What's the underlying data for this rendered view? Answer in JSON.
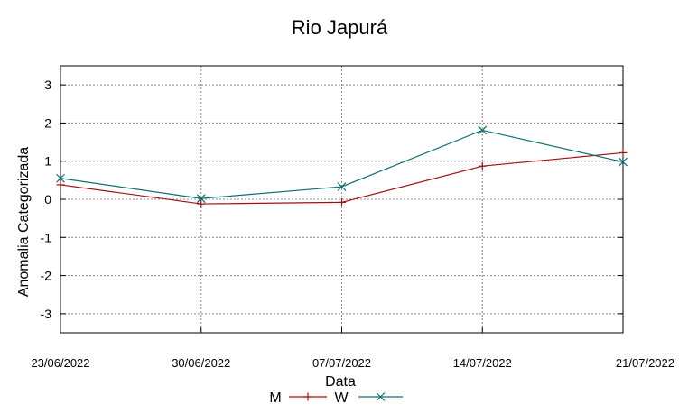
{
  "chart_data": {
    "type": "line",
    "title": "Rio Japurá",
    "xlabel": "Data",
    "ylabel": "Anomalia Categorizada",
    "categories": [
      "23/06/2022",
      "30/06/2022",
      "07/07/2022",
      "14/07/2022",
      "21/07/2022"
    ],
    "ylim": [
      -3.5,
      3.5
    ],
    "yticks": [
      "3",
      "2",
      "1",
      "0",
      "-1",
      "-2",
      "-3"
    ],
    "ytick_values": [
      3,
      2,
      1,
      0,
      -1,
      -2,
      -3
    ],
    "grid": true,
    "legend_position": "bottom",
    "series": [
      {
        "name": "M",
        "values": [
          0.38,
          -0.12,
          -0.08,
          0.87,
          1.22
        ],
        "color": "#a01010",
        "marker": "plus"
      },
      {
        "name": "W",
        "values": [
          0.55,
          0.02,
          0.33,
          1.81,
          0.98
        ],
        "color": "#117070",
        "marker": "cross"
      }
    ]
  }
}
